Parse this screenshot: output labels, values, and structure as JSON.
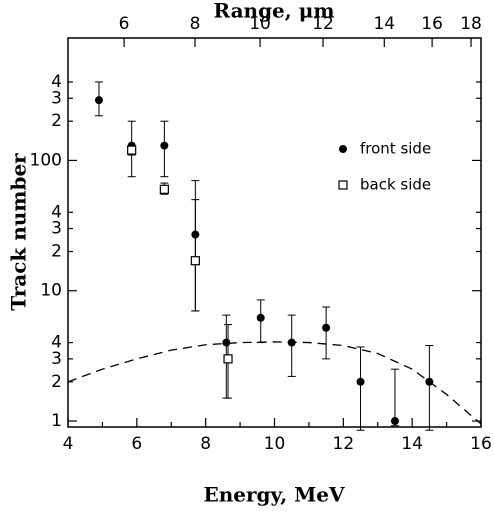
{
  "chart_data": {
    "type": "scatter",
    "x_label": "Energy, MeV",
    "y_label": "Track number",
    "x2_label": "Range, μm",
    "log_y": true,
    "legend_position": "upper right",
    "xlim": [
      4,
      16
    ],
    "ylim": [
      0.9,
      870
    ],
    "xticks": [
      4,
      6,
      8,
      10,
      12,
      14,
      16
    ],
    "xminor": [
      5,
      7,
      9,
      11,
      13,
      15
    ],
    "yticks": [
      1,
      {
        "value": 2,
        "label": "2"
      },
      {
        "value": 3,
        "label": "3"
      },
      {
        "value": 4,
        "label": "4"
      },
      10,
      {
        "value": 20,
        "label": "2"
      },
      {
        "value": 30,
        "label": "3"
      },
      {
        "value": 40,
        "label": "4"
      },
      100,
      {
        "value": 200,
        "label": "2"
      },
      {
        "value": 300,
        "label": "3"
      },
      {
        "value": 400,
        "label": "4"
      }
    ],
    "x2ticks": [
      {
        "value": 5.63,
        "label": "6"
      },
      {
        "value": 7.69,
        "label": "8"
      },
      {
        "value": 9.58,
        "label": "10"
      },
      {
        "value": 11.41,
        "label": "12"
      },
      {
        "value": 13.19,
        "label": "14"
      },
      {
        "value": 14.58,
        "label": "16"
      },
      {
        "value": 15.71,
        "label": "18"
      }
    ],
    "series": [
      {
        "name": "front side",
        "marker": "circle",
        "color": "#000",
        "x": [
          4.9,
          5.85,
          6.8,
          7.7,
          8.6,
          9.6,
          10.5,
          11.5,
          12.5,
          13.5,
          14.5
        ],
        "values": [
          290,
          130,
          130,
          27,
          4,
          6.2,
          4,
          5.2,
          2,
          1,
          2
        ],
        "yerr_low": [
          220,
          75,
          75,
          7,
          1.5,
          4,
          2.2,
          3,
          0.85,
          0.92,
          0.85
        ],
        "yerr_high": [
          400,
          200,
          200,
          70,
          6.5,
          8.5,
          6.5,
          7.5,
          3.7,
          2.5,
          3.8
        ]
      },
      {
        "name": "back side",
        "marker": "square",
        "color": "#000",
        "x": [
          5.85,
          6.8,
          7.7,
          8.65
        ],
        "values": [
          120,
          60,
          17,
          3
        ],
        "yerr_low": [
          110,
          55,
          7,
          1.5
        ],
        "yerr_high": [
          130,
          67,
          50,
          5.5
        ]
      },
      {
        "type": "line",
        "dash": true,
        "color": "#000",
        "x": [
          4,
          5,
          6,
          7,
          8,
          9,
          10,
          11,
          12,
          13,
          14,
          15,
          16
        ],
        "values": [
          2.0,
          2.5,
          3.0,
          3.5,
          3.85,
          4.0,
          4.05,
          4.0,
          3.8,
          3.3,
          2.5,
          1.6,
          0.95
        ]
      }
    ]
  }
}
